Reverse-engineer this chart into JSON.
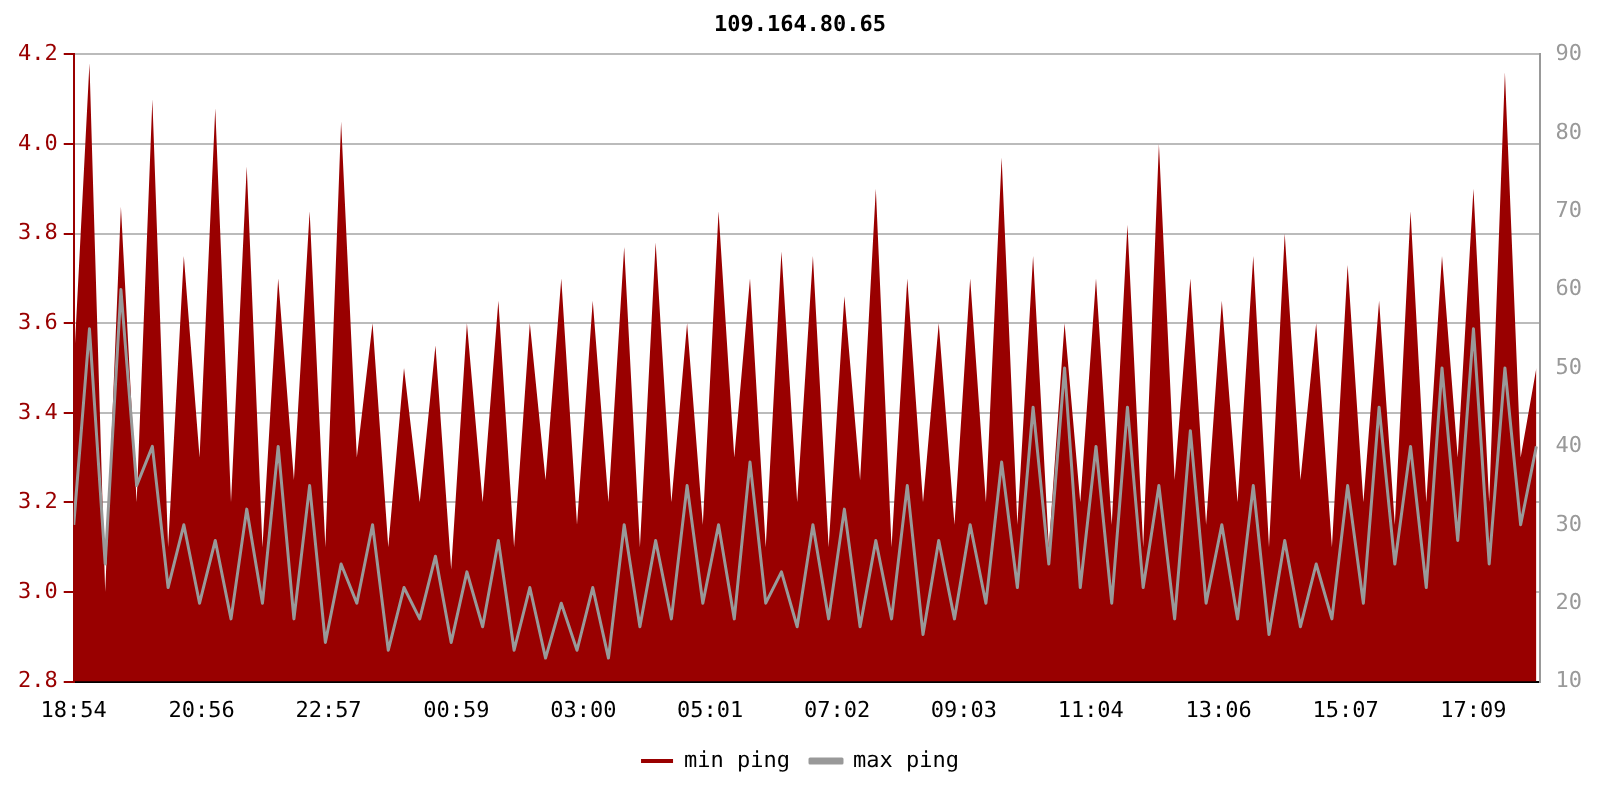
{
  "chart_data": {
    "type": "area",
    "title": "109.164.80.65",
    "x": [
      "--01-01T18:54",
      "--01-01T19:09",
      "--01-01T19:24",
      "--01-01T19:39",
      "--01-01T19:54",
      "--01-01T20:09",
      "--01-01T20:24",
      "--01-01T20:39",
      "--01-01T20:54",
      "--01-01T21:09",
      "--01-01T21:24",
      "--01-01T21:39",
      "--01-01T21:54",
      "--01-01T22:09",
      "--01-01T22:24",
      "--01-01T22:39",
      "--01-01T22:54",
      "--01-01T23:09",
      "--01-01T23:24",
      "--01-01T23:39",
      "--01-01T23:54",
      "--01-02T00:09",
      "--01-02T00:24",
      "--01-02T00:39",
      "--01-02T00:54",
      "--01-02T01:09",
      "--01-02T01:24",
      "--01-02T01:39",
      "--01-02T01:54",
      "--01-02T02:09",
      "--01-02T02:24",
      "--01-02T02:39",
      "--01-02T02:54",
      "--01-02T03:09",
      "--01-02T03:24",
      "--01-02T03:39",
      "--01-02T03:54",
      "--01-02T04:09",
      "--01-02T04:24",
      "--01-02T04:39",
      "--01-02T04:54",
      "--01-02T05:09",
      "--01-02T05:24",
      "--01-02T05:39",
      "--01-02T05:54",
      "--01-02T06:09",
      "--01-02T06:24",
      "--01-02T06:39",
      "--01-02T06:54",
      "--01-02T07:09",
      "--01-02T07:24",
      "--01-02T07:39",
      "--01-02T07:54",
      "--01-02T08:09",
      "--01-02T08:24",
      "--01-02T08:39",
      "--01-02T08:54",
      "--01-02T09:09",
      "--01-02T09:24",
      "--01-02T09:39",
      "--01-02T09:54",
      "--01-02T10:09",
      "--01-02T10:24",
      "--01-02T10:39",
      "--01-02T10:54",
      "--01-02T11:09",
      "--01-02T11:24",
      "--01-02T11:39",
      "--01-02T11:54",
      "--01-02T12:09",
      "--01-02T12:24",
      "--01-02T12:39",
      "--01-02T12:54",
      "--01-02T13:09",
      "--01-02T13:24",
      "--01-02T13:39",
      "--01-02T13:54",
      "--01-02T14:09",
      "--01-02T14:24",
      "--01-02T14:39",
      "--01-02T14:54",
      "--01-02T15:09",
      "--01-02T15:24",
      "--01-02T15:39",
      "--01-02T15:54",
      "--01-02T16:09",
      "--01-02T16:24",
      "--01-02T16:39",
      "--01-02T16:54",
      "--01-02T17:09",
      "--01-02T17:24",
      "--01-02T17:39",
      "--01-02T17:54",
      "--01-02T18:09"
    ],
    "series": [
      {
        "name": "min ping",
        "type": "area",
        "color": "#990000",
        "values": [
          3.5,
          4.18,
          3.0,
          3.86,
          3.2,
          4.1,
          3.1,
          3.75,
          3.3,
          4.08,
          3.2,
          3.95,
          3.1,
          3.7,
          3.25,
          3.85,
          3.1,
          4.05,
          3.3,
          3.6,
          3.1,
          3.5,
          3.2,
          3.55,
          3.05,
          3.6,
          3.2,
          3.65,
          3.1,
          3.6,
          3.25,
          3.7,
          3.15,
          3.65,
          3.2,
          3.77,
          3.1,
          3.78,
          3.2,
          3.6,
          3.15,
          3.85,
          3.3,
          3.7,
          3.1,
          3.76,
          3.2,
          3.75,
          3.1,
          3.66,
          3.25,
          3.9,
          3.1,
          3.7,
          3.2,
          3.6,
          3.15,
          3.7,
          3.2,
          3.97,
          3.15,
          3.75,
          3.1,
          3.6,
          3.2,
          3.7,
          3.15,
          3.82,
          3.1,
          4.0,
          3.25,
          3.7,
          3.15,
          3.65,
          3.2,
          3.75,
          3.1,
          3.8,
          3.25,
          3.6,
          3.1,
          3.73,
          3.2,
          3.65,
          3.15,
          3.85,
          3.2,
          3.75,
          3.3,
          3.9,
          3.2,
          4.16,
          3.3,
          3.5
        ]
      },
      {
        "name": "max ping",
        "type": "line",
        "axis": "y2",
        "color": "#999999",
        "values": [
          30,
          55,
          25,
          60,
          35,
          40,
          22,
          30,
          20,
          28,
          18,
          32,
          20,
          40,
          18,
          35,
          15,
          25,
          20,
          30,
          14,
          22,
          18,
          26,
          15,
          24,
          17,
          28,
          14,
          22,
          13,
          20,
          14,
          22,
          13,
          30,
          17,
          28,
          18,
          35,
          20,
          30,
          18,
          38,
          20,
          24,
          17,
          30,
          18,
          32,
          17,
          28,
          18,
          35,
          16,
          28,
          18,
          30,
          20,
          38,
          22,
          45,
          25,
          50,
          22,
          40,
          20,
          45,
          22,
          35,
          18,
          42,
          20,
          30,
          18,
          35,
          16,
          28,
          17,
          25,
          18,
          35,
          20,
          45,
          25,
          40,
          22,
          50,
          28,
          55,
          25,
          50,
          30,
          40
        ]
      }
    ],
    "xlim": [
      "--01-01T18:54",
      "--01-02T18:12"
    ],
    "xticks": [
      {
        "value": "--01-01T18:54",
        "label": "18:54"
      },
      {
        "value": "--01-01T20:56",
        "label": "20:56"
      },
      {
        "value": "--01-01T22:57",
        "label": "22:57"
      },
      {
        "value": "--01-02T00:59",
        "label": "00:59"
      },
      {
        "value": "--01-02T03:00",
        "label": "03:00"
      },
      {
        "value": "--01-02T05:01",
        "label": "05:01"
      },
      {
        "value": "--01-02T07:02",
        "label": "07:02"
      },
      {
        "value": "--01-02T09:03",
        "label": "09:03"
      },
      {
        "value": "--01-02T11:04",
        "label": "11:04"
      },
      {
        "value": "--01-02T13:06",
        "label": "13:06"
      },
      {
        "value": "--01-02T15:07",
        "label": "15:07"
      },
      {
        "value": "--01-02T17:09",
        "label": "17:09"
      }
    ],
    "ylim": [
      2.8,
      4.2
    ],
    "yticks": [
      {
        "value": 2.8,
        "label": "2.8"
      },
      {
        "value": 3.0,
        "label": "3.0"
      },
      {
        "value": 3.2,
        "label": "3.2"
      },
      {
        "value": 3.4,
        "label": "3.4"
      },
      {
        "value": 3.6,
        "label": "3.6"
      },
      {
        "value": 3.8,
        "label": "3.8"
      },
      {
        "value": 4.0,
        "label": "4.0"
      },
      {
        "value": 4.2,
        "label": "4.2"
      }
    ],
    "y2lim": [
      10,
      90
    ],
    "y2ticks": [
      10,
      20,
      30,
      40,
      50,
      60,
      70,
      80,
      90
    ],
    "grid": "y",
    "legend": "bottom",
    "line_style": "solid",
    "marker": "none"
  }
}
